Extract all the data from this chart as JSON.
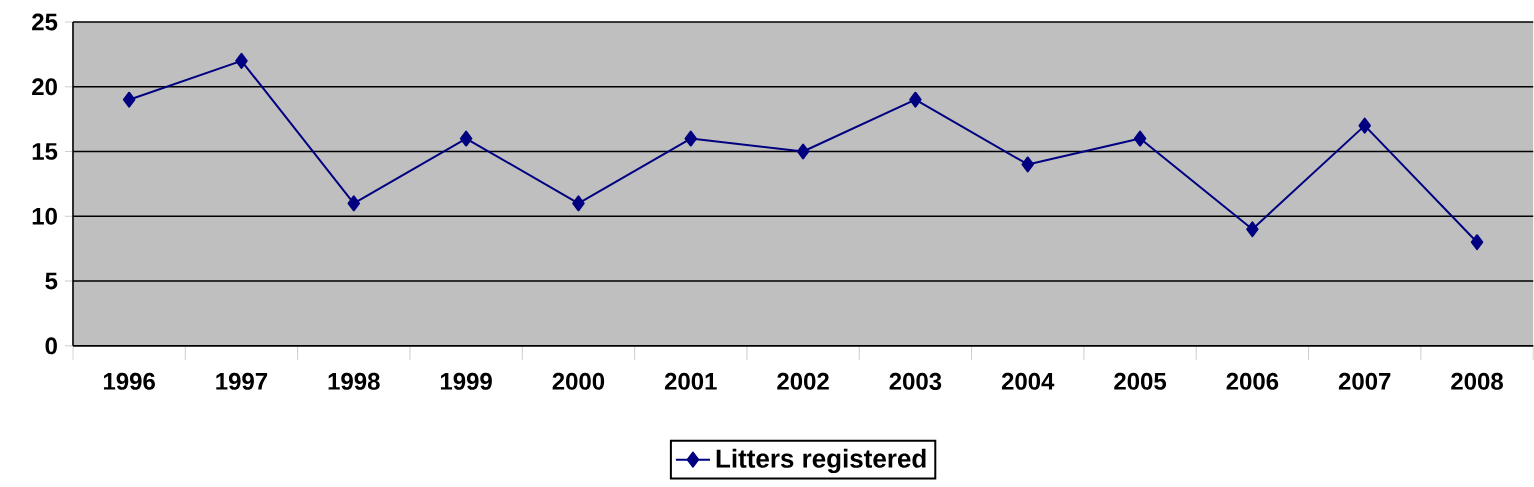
{
  "chart_data": {
    "type": "line",
    "categories": [
      "1996",
      "1997",
      "1998",
      "1999",
      "2000",
      "2001",
      "2002",
      "2003",
      "2004",
      "2005",
      "2006",
      "2007",
      "2008"
    ],
    "series": [
      {
        "name": "Litters registered",
        "color": "#000080",
        "values": [
          19,
          22,
          11,
          16,
          11,
          16,
          15,
          19,
          14,
          16,
          9,
          17,
          8
        ]
      }
    ],
    "ylim": [
      0,
      25
    ],
    "yticks": [
      0,
      5,
      10,
      15,
      20,
      25
    ],
    "grid": "y",
    "legend": "bottom",
    "marker": "diamond",
    "line_style": "solid"
  }
}
